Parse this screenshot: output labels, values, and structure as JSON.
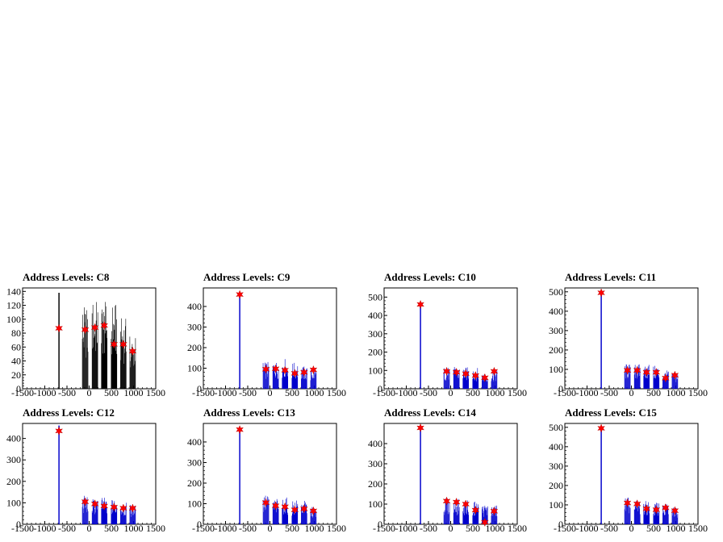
{
  "chart_data": [
    {
      "type": "histogram",
      "title": "Address Levels: C8",
      "xlim": [
        -1500,
        1500
      ],
      "xticks": [
        -1500,
        -1000,
        -500,
        0,
        500,
        1000,
        1500
      ],
      "ylim": [
        0,
        145
      ],
      "yticks": [
        0,
        20,
        40,
        60,
        80,
        100,
        120,
        140
      ],
      "bar_color": "#000000",
      "peaks": [
        {
          "x": -680,
          "height": 138,
          "marker": 87
        },
        {
          "x": -90,
          "height": 118,
          "marker": 85
        },
        {
          "x": 130,
          "height": 128,
          "marker": 88
        },
        {
          "x": 340,
          "height": 126,
          "marker": 91
        },
        {
          "x": 560,
          "height": 124,
          "marker": 64
        },
        {
          "x": 770,
          "height": 102,
          "marker": 64
        },
        {
          "x": 980,
          "height": 76,
          "marker": 54
        }
      ]
    },
    {
      "type": "histogram",
      "title": "Address Levels: C9",
      "xlim": [
        -1500,
        1500
      ],
      "xticks": [
        -1500,
        -1000,
        -500,
        0,
        500,
        1000,
        1500
      ],
      "ylim": [
        0,
        490
      ],
      "yticks": [
        0,
        100,
        200,
        300,
        400
      ],
      "bar_color": "#0000cc",
      "peaks": [
        {
          "x": -680,
          "height": 462,
          "marker": 458
        },
        {
          "x": -90,
          "height": 130,
          "marker": 95
        },
        {
          "x": 130,
          "height": 135,
          "marker": 97
        },
        {
          "x": 340,
          "height": 148,
          "marker": 90
        },
        {
          "x": 560,
          "height": 128,
          "marker": 75
        },
        {
          "x": 770,
          "height": 110,
          "marker": 80
        },
        {
          "x": 980,
          "height": 100,
          "marker": 92
        }
      ]
    },
    {
      "type": "histogram",
      "title": "Address Levels: C10",
      "xlim": [
        -1500,
        1500
      ],
      "xticks": [
        -1500,
        -1000,
        -500,
        0,
        500,
        1000,
        1500
      ],
      "ylim": [
        0,
        550
      ],
      "yticks": [
        0,
        100,
        200,
        300,
        400,
        500
      ],
      "bar_color": "#0000cc",
      "peaks": [
        {
          "x": -680,
          "height": 470,
          "marker": 460
        },
        {
          "x": -90,
          "height": 118,
          "marker": 95
        },
        {
          "x": 130,
          "height": 120,
          "marker": 90
        },
        {
          "x": 340,
          "height": 118,
          "marker": 82
        },
        {
          "x": 560,
          "height": 115,
          "marker": 72
        },
        {
          "x": 770,
          "height": 95,
          "marker": 60
        },
        {
          "x": 980,
          "height": 105,
          "marker": 95
        }
      ]
    },
    {
      "type": "histogram",
      "title": "Address Levels: C11",
      "xlim": [
        -1500,
        1500
      ],
      "xticks": [
        -1500,
        -1000,
        -500,
        0,
        500,
        1000,
        1500
      ],
      "ylim": [
        0,
        520
      ],
      "yticks": [
        0,
        100,
        200,
        300,
        400,
        500
      ],
      "bar_color": "#0000cc",
      "peaks": [
        {
          "x": -680,
          "height": 505,
          "marker": 495
        },
        {
          "x": -90,
          "height": 130,
          "marker": 95
        },
        {
          "x": 130,
          "height": 128,
          "marker": 95
        },
        {
          "x": 340,
          "height": 130,
          "marker": 85
        },
        {
          "x": 560,
          "height": 120,
          "marker": 85
        },
        {
          "x": 770,
          "height": 95,
          "marker": 55
        },
        {
          "x": 980,
          "height": 85,
          "marker": 70
        }
      ]
    },
    {
      "type": "histogram",
      "title": "Address Levels: C12",
      "xlim": [
        -1500,
        1500
      ],
      "xticks": [
        -1500,
        -1000,
        -500,
        0,
        500,
        1000,
        1500
      ],
      "ylim": [
        0,
        470
      ],
      "yticks": [
        0,
        100,
        200,
        300,
        400
      ],
      "bar_color": "#0000cc",
      "peaks": [
        {
          "x": -680,
          "height": 460,
          "marker": 435
        },
        {
          "x": -90,
          "height": 135,
          "marker": 105
        },
        {
          "x": 130,
          "height": 120,
          "marker": 95
        },
        {
          "x": 340,
          "height": 125,
          "marker": 85
        },
        {
          "x": 560,
          "height": 118,
          "marker": 80
        },
        {
          "x": 770,
          "height": 100,
          "marker": 75
        },
        {
          "x": 980,
          "height": 90,
          "marker": 75
        }
      ]
    },
    {
      "type": "histogram",
      "title": "Address Levels: C13",
      "xlim": [
        -1500,
        1500
      ],
      "xticks": [
        -1500,
        -1000,
        -500,
        0,
        500,
        1000,
        1500
      ],
      "ylim": [
        0,
        490
      ],
      "yticks": [
        0,
        100,
        200,
        300,
        400
      ],
      "bar_color": "#0000cc",
      "peaks": [
        {
          "x": -680,
          "height": 470,
          "marker": 460
        },
        {
          "x": -90,
          "height": 145,
          "marker": 105
        },
        {
          "x": 130,
          "height": 125,
          "marker": 90
        },
        {
          "x": 340,
          "height": 130,
          "marker": 85
        },
        {
          "x": 560,
          "height": 120,
          "marker": 70
        },
        {
          "x": 770,
          "height": 115,
          "marker": 75
        },
        {
          "x": 980,
          "height": 85,
          "marker": 65
        }
      ]
    },
    {
      "type": "histogram",
      "title": "Address Levels: C14",
      "xlim": [
        -1500,
        1500
      ],
      "xticks": [
        -1500,
        -1000,
        -500,
        0,
        500,
        1000,
        1500
      ],
      "ylim": [
        0,
        500
      ],
      "yticks": [
        0,
        100,
        200,
        300,
        400
      ],
      "bar_color": "#0000cc",
      "peaks": [
        {
          "x": -680,
          "height": 480,
          "marker": 478
        },
        {
          "x": -90,
          "height": 128,
          "marker": 115
        },
        {
          "x": 130,
          "height": 125,
          "marker": 110
        },
        {
          "x": 340,
          "height": 120,
          "marker": 100
        },
        {
          "x": 560,
          "height": 115,
          "marker": 70
        },
        {
          "x": 770,
          "height": 100,
          "marker": 10
        },
        {
          "x": 980,
          "height": 95,
          "marker": 65
        }
      ]
    },
    {
      "type": "histogram",
      "title": "Address Levels: C15",
      "xlim": [
        -1500,
        1500
      ],
      "xticks": [
        -1500,
        -1000,
        -500,
        0,
        500,
        1000,
        1500
      ],
      "ylim": [
        0,
        520
      ],
      "yticks": [
        0,
        100,
        200,
        300,
        400,
        500
      ],
      "bar_color": "#0000cc",
      "peaks": [
        {
          "x": -680,
          "height": 505,
          "marker": 495
        },
        {
          "x": -90,
          "height": 140,
          "marker": 110
        },
        {
          "x": 130,
          "height": 125,
          "marker": 105
        },
        {
          "x": 340,
          "height": 120,
          "marker": 80
        },
        {
          "x": 560,
          "height": 115,
          "marker": 75
        },
        {
          "x": 770,
          "height": 105,
          "marker": 85
        },
        {
          "x": 980,
          "height": 90,
          "marker": 70
        }
      ]
    }
  ],
  "marker_color": "#ff0000",
  "axis_color": "#000000"
}
